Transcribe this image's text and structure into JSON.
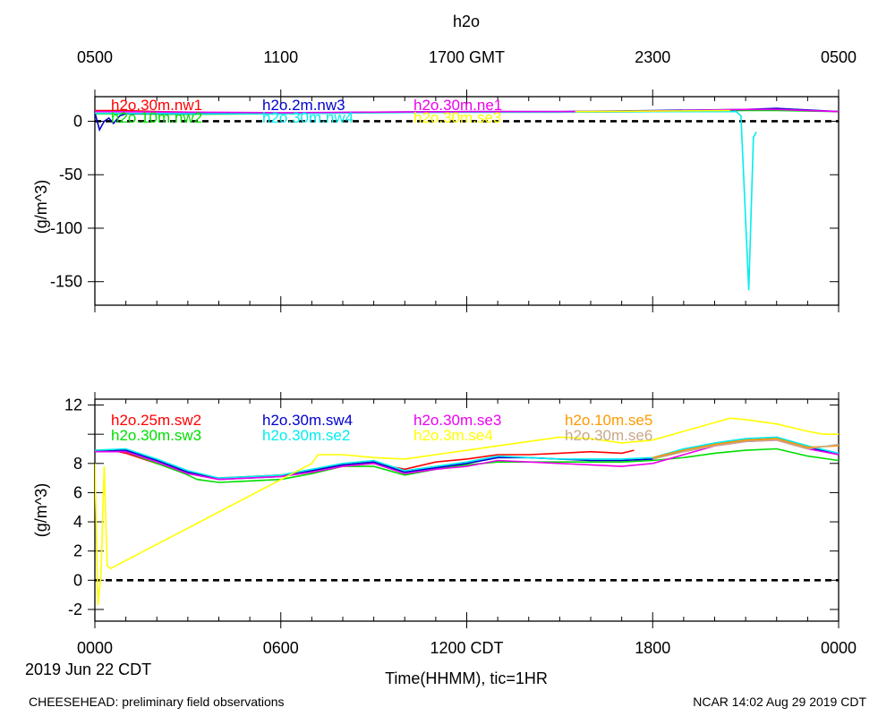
{
  "chart_data": [
    {
      "type": "line",
      "title": "h2o",
      "top_axis_label_suffix": "GMT",
      "top_ticks": [
        "0500",
        "1100",
        "1700 GMT",
        "2300",
        "0500"
      ],
      "ylabel": "(g/m^3)",
      "ylim": [
        -172,
        23
      ],
      "yticks": [
        0,
        -50,
        -100,
        -150
      ],
      "xlim": [
        0,
        24
      ],
      "reference_line": 0,
      "series": [
        {
          "name": "h2o.30m.nw1",
          "color": "#ff0000",
          "x": [
            0,
            1,
            2,
            3,
            3.6
          ],
          "y": [
            10,
            10,
            9,
            8.5,
            8
          ]
        },
        {
          "name": "h2o.10m.nw2",
          "color": "#00dd00",
          "x": [
            0,
            3,
            6,
            9,
            12,
            15,
            18,
            21,
            22,
            24
          ],
          "y": [
            7,
            6.5,
            7,
            8,
            8.5,
            8.5,
            9,
            10,
            10,
            9
          ]
        },
        {
          "name": "h2o.2m.nw3",
          "color": "#0000cc",
          "x": [
            0,
            0.15,
            0.3,
            0.45,
            0.6,
            0.8,
            1,
            3,
            6,
            9,
            12,
            15,
            18,
            21,
            22,
            24
          ],
          "y": [
            8,
            -8,
            0,
            3,
            -2,
            5,
            7,
            7,
            7.5,
            8.5,
            9,
            9,
            10,
            11,
            12,
            9
          ]
        },
        {
          "name": "h2o.30m.nw4",
          "color": "#00eeee",
          "x": [
            0,
            3,
            6,
            9,
            12,
            15,
            18,
            20.7,
            20.85,
            21.1,
            21.25,
            21.35
          ],
          "y": [
            7.5,
            7,
            7,
            8,
            8.5,
            8.5,
            9,
            9,
            5,
            -158,
            -15,
            -10
          ]
        },
        {
          "name": "h2o.30m.ne1",
          "color": "#ee00ee",
          "x": [
            0,
            3,
            6,
            9,
            12,
            15,
            18,
            21,
            22,
            24
          ],
          "y": [
            9,
            8.5,
            8,
            8.5,
            9,
            9,
            9.5,
            11,
            11,
            9
          ]
        },
        {
          "name": "h2o.30m.se3",
          "color": "#ffff00",
          "x": [
            15.5,
            18,
            20.5
          ],
          "y": [
            9,
            9.5,
            10
          ]
        }
      ]
    },
    {
      "type": "line",
      "title": "",
      "xlabel": "Time(HHMM), tic=1HR",
      "bottom_ticks": [
        "0000",
        "0600",
        "1200 CDT",
        "1800",
        "0000"
      ],
      "date_label": "2019 Jun 22 CDT",
      "ylabel": "(g/m^3)",
      "ylim": [
        -2.8,
        12.4
      ],
      "yticks": [
        12,
        10,
        8,
        6,
        4,
        2,
        0,
        -2
      ],
      "ytick_labels": [
        "12",
        "",
        "8",
        "6",
        "4",
        "2",
        "0",
        "-2"
      ],
      "xlim": [
        0,
        24
      ],
      "reference_line": 0,
      "series": [
        {
          "name": "h2o.25m.sw2",
          "color": "#ff0000",
          "x": [
            0,
            0.5,
            1,
            2,
            3,
            4,
            6,
            7,
            8,
            9,
            10,
            11,
            12,
            13,
            14,
            15,
            16,
            17,
            17.4
          ],
          "y": [
            8.8,
            8.9,
            8.7,
            8,
            7.4,
            7,
            7.2,
            7.5,
            7.9,
            8,
            7.6,
            8.1,
            8.3,
            8.6,
            8.6,
            8.7,
            8.8,
            8.7,
            8.9
          ]
        },
        {
          "name": "h2o.30m.sw3",
          "color": "#00dd00",
          "x": [
            0,
            1,
            2,
            2.9,
            3.3,
            4,
            6,
            7,
            8,
            9,
            10,
            11,
            12,
            13,
            14,
            15,
            16,
            17,
            18,
            19,
            20,
            21,
            22,
            23,
            24
          ],
          "y": [
            8.8,
            8.8,
            8,
            7.3,
            6.9,
            6.7,
            6.9,
            7.3,
            7.8,
            7.8,
            7.2,
            7.6,
            7.9,
            8.1,
            8.1,
            8.1,
            8.1,
            8.1,
            8.2,
            8.4,
            8.7,
            8.9,
            9,
            8.5,
            8.2
          ]
        },
        {
          "name": "h2o.30m.sw4",
          "color": "#0000cc",
          "x": [
            0,
            1,
            2,
            3,
            4,
            6,
            7,
            8,
            9,
            10,
            11,
            12,
            13,
            14,
            15,
            16,
            17,
            18,
            19,
            20,
            21,
            22,
            23,
            24
          ],
          "y": [
            8.9,
            8.9,
            8.2,
            7.4,
            6.9,
            7.1,
            7.5,
            7.9,
            8.1,
            7.4,
            7.7,
            8,
            8.4,
            8.4,
            8.3,
            8.2,
            8.2,
            8.3,
            8.9,
            9.3,
            9.6,
            9.7,
            9.1,
            8.6
          ]
        },
        {
          "name": "h2o.30m.se2",
          "color": "#00eeee",
          "x": [
            0,
            1,
            2,
            3,
            4,
            6,
            7,
            8,
            9,
            10,
            11,
            12,
            13,
            14,
            15,
            16,
            17,
            18,
            19,
            20,
            21,
            22,
            23,
            24
          ],
          "y": [
            8.9,
            9,
            8.3,
            7.5,
            7,
            7.2,
            7.6,
            8,
            8.2,
            7.5,
            7.8,
            8.1,
            8.5,
            8.4,
            8.3,
            8.3,
            8.3,
            8.4,
            9,
            9.4,
            9.7,
            9.8,
            9.2,
            8.7
          ]
        },
        {
          "name": "h2o.30m.se3",
          "color": "#ee00ee",
          "x": [
            0,
            1,
            2,
            3,
            4,
            6,
            7,
            8,
            9,
            10,
            11,
            12,
            13,
            14,
            15,
            16,
            17,
            18,
            19,
            20,
            21,
            22,
            23,
            24
          ],
          "y": [
            8.8,
            8.8,
            8.1,
            7.3,
            6.9,
            7.1,
            7.4,
            7.8,
            8,
            7.3,
            7.6,
            7.8,
            8.2,
            8.1,
            8.0,
            7.9,
            7.8,
            8.0,
            8.6,
            9.2,
            9.5,
            9.6,
            9.0,
            8.6
          ]
        },
        {
          "name": "h2o.3m.se4",
          "color": "#ffff00",
          "x": [
            0,
            0.1,
            0.2,
            0.3,
            0.4,
            0.5,
            7,
            7.2,
            8,
            9,
            10,
            11,
            12,
            13,
            14,
            15,
            16,
            17,
            18,
            19,
            20,
            20.5,
            21,
            22,
            23,
            23.5,
            24
          ],
          "y": [
            8,
            -1.7,
            0.5,
            7.8,
            1,
            0.8,
            8,
            8.6,
            8.6,
            8.4,
            8.3,
            8.6,
            8.9,
            9.2,
            9.5,
            9.8,
            9.7,
            9.4,
            9.6,
            10.2,
            10.8,
            11.1,
            11,
            10.7,
            10.2,
            10,
            10
          ]
        },
        {
          "name": "h2o.10m.se5",
          "color": "#ff9900",
          "x": [
            18,
            19,
            20,
            21,
            22,
            23,
            24
          ],
          "y": [
            8.4,
            8.9,
            9.3,
            9.6,
            9.7,
            9.1,
            9.2
          ]
        },
        {
          "name": "h2o.30m.se6",
          "color": "#c8a888",
          "x": [
            18,
            19,
            20,
            21,
            22,
            23,
            24
          ],
          "y": [
            8.3,
            8.8,
            9.2,
            9.5,
            9.6,
            9.0,
            9.3
          ]
        }
      ]
    }
  ],
  "footer": {
    "left": "CHEESEHEAD: preliminary field observations",
    "right": "NCAR 14:02 Aug 29 2019 CDT"
  }
}
